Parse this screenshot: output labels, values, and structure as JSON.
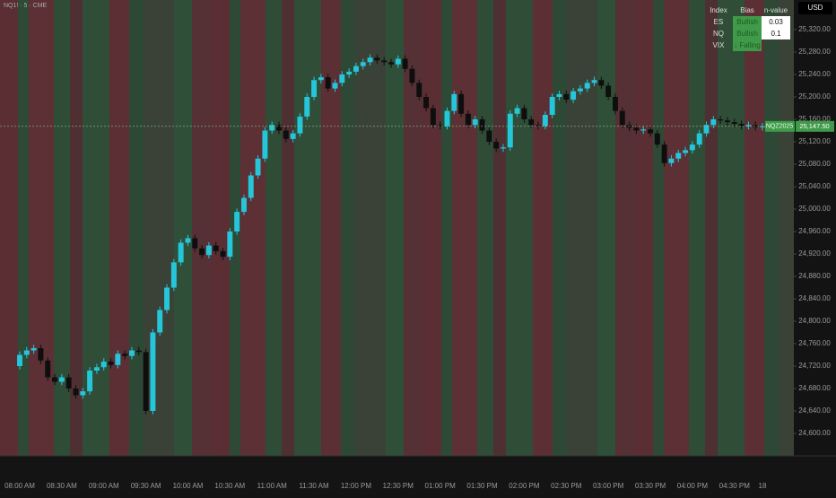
{
  "header": {
    "symbol": "NQ1! · 5 · CME",
    "currency": "USD"
  },
  "bias_table": {
    "columns": [
      "Index",
      "Bias",
      "n-value"
    ],
    "rows": [
      [
        "ES",
        "Bullish",
        "0.03"
      ],
      [
        "NQ",
        "Bullish",
        "0.1"
      ],
      [
        "VIX",
        "↓ Falling",
        null
      ]
    ]
  },
  "chart_data": {
    "type": "candlestick",
    "categories": [
      "08:00 AM",
      null,
      null,
      null,
      null,
      null,
      "08:30 AM",
      null,
      null,
      null,
      null,
      null,
      "09:00 AM",
      null,
      null,
      null,
      null,
      null,
      "09:30 AM",
      null,
      null,
      null,
      null,
      null,
      "10:00 AM",
      null,
      null,
      null,
      null,
      null,
      "10:30 AM",
      null,
      null,
      null,
      null,
      null,
      "11:00 AM",
      null,
      null,
      null,
      null,
      null,
      "11:30 AM",
      null,
      null,
      null,
      null,
      null,
      "12:00 PM",
      null,
      null,
      null,
      null,
      null,
      "12:30 PM",
      null,
      null,
      null,
      null,
      null,
      "01:00 PM",
      null,
      null,
      null,
      null,
      null,
      "01:30 PM",
      null,
      null,
      null,
      null,
      null,
      "02:00 PM",
      null,
      null,
      null,
      null,
      null,
      "02:30 PM",
      null,
      null,
      null,
      null,
      null,
      "03:00 PM",
      null,
      null,
      null,
      null,
      null,
      "03:30 PM",
      null,
      null,
      null,
      null,
      null,
      "04:00 PM",
      null,
      null,
      null,
      null,
      null,
      "04:30 PM",
      null,
      null,
      null,
      "18"
    ],
    "open": [
      24720,
      24740,
      24748,
      24752,
      24730,
      24700,
      24692,
      24700,
      24680,
      24668,
      24675,
      24712,
      24718,
      24728,
      24722,
      24742,
      24738,
      24748,
      24745,
      24640,
      24780,
      24820,
      24860,
      24905,
      24940,
      24948,
      24930,
      24918,
      24935,
      24925,
      24915,
      24960,
      24995,
      25020,
      25060,
      25090,
      25140,
      25150,
      25140,
      25125,
      25135,
      25165,
      25200,
      25230,
      25235,
      25215,
      25225,
      25240,
      25245,
      25255,
      25262,
      25270,
      25265,
      25262,
      25258,
      25268,
      25250,
      25225,
      25200,
      25180,
      25150,
      25148,
      25175,
      25205,
      25170,
      25150,
      25160,
      25140,
      25120,
      25108,
      25110,
      25170,
      25180,
      25160,
      25150,
      25148,
      25168,
      25200,
      25205,
      25195,
      25210,
      25215,
      25225,
      25230,
      25220,
      25200,
      25175,
      25150,
      25145,
      25140,
      25142,
      25135,
      25115,
      25082,
      25090,
      25100,
      25105,
      25115,
      25135,
      25150,
      25160,
      25158,
      25155,
      25152,
      25148,
      25150,
      25146
    ],
    "high": [
      24746,
      24754,
      24758,
      24758,
      24736,
      24706,
      24706,
      24706,
      24686,
      24681,
      24718,
      24724,
      24734,
      24734,
      24748,
      24748,
      24754,
      24754,
      24751,
      24786,
      24826,
      24866,
      24911,
      24946,
      24954,
      24954,
      24936,
      24941,
      24941,
      24931,
      24966,
      25001,
      25026,
      25066,
      25096,
      25146,
      25156,
      25156,
      25146,
      25141,
      25171,
      25206,
      25236,
      25241,
      25241,
      25231,
      25246,
      25251,
      25261,
      25268,
      25276,
      25276,
      25271,
      25268,
      25274,
      25274,
      25256,
      25231,
      25206,
      25186,
      25156,
      25181,
      25211,
      25211,
      25176,
      25166,
      25166,
      25146,
      25126,
      25116,
      25176,
      25186,
      25186,
      25166,
      25156,
      25174,
      25206,
      25211,
      25211,
      25216,
      25221,
      25231,
      25236,
      25236,
      25226,
      25206,
      25181,
      25156,
      25151,
      25148,
      25148,
      25141,
      25121,
      25096,
      25106,
      25111,
      25121,
      25141,
      25156,
      25166,
      25166,
      25164,
      25161,
      25158,
      25156,
      25156,
      25153.5
    ],
    "low": [
      24714,
      24734,
      24742,
      24724,
      24694,
      24686,
      24686,
      24674,
      24662,
      24662,
      24669,
      24706,
      24712,
      24716,
      24716,
      24732,
      24732,
      24739,
      24634,
      24634,
      24774,
      24814,
      24854,
      24899,
      24934,
      24924,
      24912,
      24912,
      24919,
      24909,
      24909,
      24954,
      24989,
      25014,
      25054,
      25084,
      25134,
      25134,
      25119,
      25119,
      25129,
      25159,
      25194,
      25224,
      25209,
      25209,
      25219,
      25234,
      25239,
      25249,
      25256,
      25259,
      25256,
      25252,
      25252,
      25244,
      25219,
      25194,
      25174,
      25144,
      25142,
      25142,
      25169,
      25164,
      25144,
      25144,
      25134,
      25114,
      25102,
      25102,
      25104,
      25164,
      25154,
      25144,
      25142,
      25142,
      25162,
      25194,
      25189,
      25189,
      25204,
      25209,
      25219,
      25214,
      25194,
      25169,
      25144,
      25139,
      25134,
      25134,
      25129,
      25109,
      25076,
      25076,
      25084,
      25094,
      25099,
      25109,
      25129,
      25144,
      25152,
      25149,
      25146,
      25142,
      25142,
      25140,
      25140
    ],
    "close": [
      24740,
      24748,
      24752,
      24730,
      24700,
      24692,
      24700,
      24680,
      24668,
      24675,
      24712,
      24718,
      24728,
      24722,
      24742,
      24738,
      24748,
      24745,
      24640,
      24780,
      24820,
      24860,
      24905,
      24940,
      24948,
      24930,
      24918,
      24935,
      24925,
      24915,
      24960,
      24995,
      25020,
      25060,
      25090,
      25140,
      25150,
      25140,
      25125,
      25135,
      25165,
      25200,
      25230,
      25235,
      25215,
      25225,
      25240,
      25245,
      25255,
      25262,
      25270,
      25265,
      25262,
      25258,
      25268,
      25250,
      25225,
      25200,
      25180,
      25150,
      25148,
      25175,
      25205,
      25170,
      25150,
      25160,
      25140,
      25120,
      25108,
      25110,
      25170,
      25180,
      25160,
      25150,
      25148,
      25168,
      25200,
      25205,
      25195,
      25210,
      25215,
      25225,
      25230,
      25220,
      25200,
      25175,
      25150,
      25145,
      25140,
      25142,
      25135,
      25115,
      25082,
      25090,
      25100,
      25105,
      25115,
      25135,
      25150,
      25160,
      25158,
      25155,
      25152,
      25148,
      25150,
      25146,
      25147.5
    ],
    "up_color": "#26c6da",
    "down_color": "#0e0e0e",
    "ylim": [
      24560,
      25372.8
    ],
    "yticks": [
      {
        "value": 24600,
        "label": "24,600.00"
      },
      {
        "value": 24640,
        "label": "24,640.00"
      },
      {
        "value": 24680,
        "label": "24,680.00"
      },
      {
        "value": 24720,
        "label": "24,720.00"
      },
      {
        "value": 24760,
        "label": "24,760.00"
      },
      {
        "value": 24800,
        "label": "24,800.00"
      },
      {
        "value": 24840,
        "label": "24,840.00"
      },
      {
        "value": 24880,
        "label": "24,880.00"
      },
      {
        "value": 24920,
        "label": "24,920.00"
      },
      {
        "value": 24960,
        "label": "24,960.00"
      },
      {
        "value": 25000,
        "label": "25,000.00"
      },
      {
        "value": 25040,
        "label": "25,040.00"
      },
      {
        "value": 25080,
        "label": "25,080.00"
      },
      {
        "value": 25120,
        "label": "25,120.00"
      },
      {
        "value": 25160,
        "label": "25,160.00"
      },
      {
        "value": 25200,
        "label": "25,200.00"
      },
      {
        "value": 25240,
        "label": "25,240.00"
      },
      {
        "value": 25280,
        "label": "25,280.00"
      },
      {
        "value": 25320,
        "label": "25,320.00"
      }
    ],
    "last_symbol": "NQZ2025",
    "last_price": {
      "value": 25147.5,
      "label": "25,147.50"
    },
    "grid": false
  }
}
